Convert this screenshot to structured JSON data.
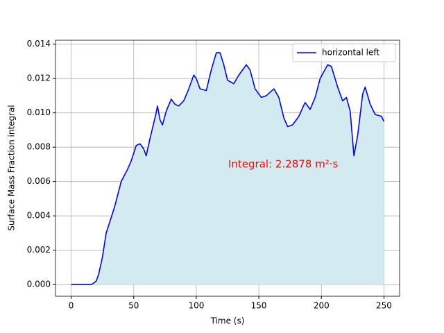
{
  "chart_data": {
    "type": "line",
    "x_label": "Time (s)",
    "y_label": "Surface Mass Fraction integral",
    "annotation": "Integral: 2.2878 m²·s",
    "annotation_color": "#ff0000",
    "x": [
      0,
      5,
      10,
      15,
      17,
      20,
      22,
      25,
      28,
      32,
      35,
      40,
      45,
      48,
      52,
      55,
      58,
      60,
      63,
      67,
      69,
      71,
      73,
      76,
      80,
      83,
      86,
      90,
      94,
      98,
      100,
      103,
      108,
      112,
      116,
      119,
      122,
      125,
      130,
      134,
      140,
      143,
      147,
      152,
      156,
      162,
      166,
      170,
      173,
      177,
      182,
      185,
      187,
      191,
      195,
      199,
      205,
      208,
      213,
      217,
      220,
      223,
      226,
      229,
      233,
      235,
      239,
      243,
      248,
      250
    ],
    "series": [
      {
        "name": "horizontal left",
        "color": "#0000ff",
        "fill_color": "#d3eaf1",
        "values": [
          0,
          0,
          0,
          0,
          3e-05,
          0.0002,
          0.0006,
          0.0016,
          0.003,
          0.0039,
          0.0046,
          0.006,
          0.0067,
          0.0072,
          0.0081,
          0.0082,
          0.0079,
          0.0075,
          0.0085,
          0.0097,
          0.0104,
          0.0096,
          0.0093,
          0.0101,
          0.0108,
          0.0105,
          0.0104,
          0.0107,
          0.0114,
          0.0122,
          0.012,
          0.0114,
          0.0113,
          0.0125,
          0.0135,
          0.0135,
          0.0128,
          0.0119,
          0.0117,
          0.0122,
          0.0128,
          0.0125,
          0.0114,
          0.0109,
          0.011,
          0.0114,
          0.0109,
          0.0097,
          0.0092,
          0.0093,
          0.0098,
          0.0103,
          0.0106,
          0.0102,
          0.0109,
          0.012,
          0.0128,
          0.0127,
          0.0115,
          0.0107,
          0.0109,
          0.0101,
          0.0075,
          0.0087,
          0.0111,
          0.0115,
          0.0105,
          0.0099,
          0.0098,
          0.0095
        ]
      }
    ],
    "xlim": [
      -12.5,
      262.5
    ],
    "ylim": [
      -0.00068,
      0.01423
    ],
    "xticks": [
      0,
      50,
      100,
      150,
      200,
      250
    ],
    "yticks": [
      {
        "value": 0,
        "label": "0.000"
      },
      {
        "value": 0.002,
        "label": "0.002"
      },
      {
        "value": 0.004,
        "label": "0.004"
      },
      {
        "value": 0.006,
        "label": "0.006"
      },
      {
        "value": 0.008,
        "label": "0.008"
      },
      {
        "value": 0.01,
        "label": "0.010"
      },
      {
        "value": 0.012,
        "label": "0.012"
      },
      {
        "value": 0.014,
        "label": "0.014"
      }
    ],
    "grid": true,
    "legend": "upper right"
  }
}
